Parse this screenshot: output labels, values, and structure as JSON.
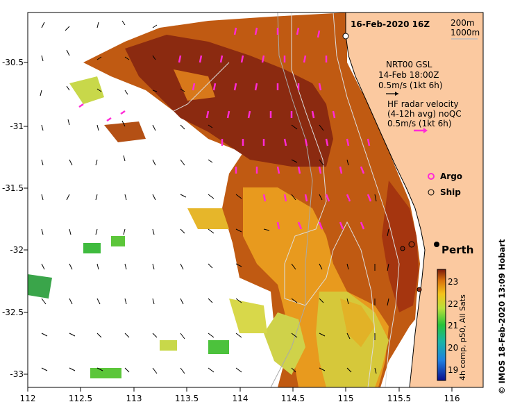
{
  "title": "16-Feb-2020 16Z",
  "isobaths": [
    "200m",
    "1000m"
  ],
  "model_legend": {
    "name": "NRT00 GSL",
    "time": "14-Feb 18:00Z",
    "scale": "0.5m/s (1kt 6h)"
  },
  "radar_legend": {
    "line1": "HF radar velocity",
    "line2": "(4-12h avg) noQC",
    "scale": "0.5m/s (1kt 6h)"
  },
  "markers": {
    "argo": "Argo",
    "ship": "Ship"
  },
  "city": "Perth",
  "colorbar": {
    "label": "4h comp, p50, All Sats",
    "ticks": [
      "23",
      "22",
      "21",
      "20",
      "19"
    ]
  },
  "credit": "© IMOS 18-Feb-2020 13:09 Hobart",
  "axes": {
    "x_ticks": [
      "112",
      "112.5",
      "113",
      "113.5",
      "114",
      "114.5",
      "115",
      "115.5",
      "116"
    ],
    "y_ticks": [
      "-30.5",
      "-31",
      "-31.5",
      "-32",
      "-32.5",
      "-33"
    ]
  },
  "colors": {
    "land": "#fbc9a0",
    "radar_arrow": "#ff2bd6",
    "city_dot": "#000000"
  }
}
